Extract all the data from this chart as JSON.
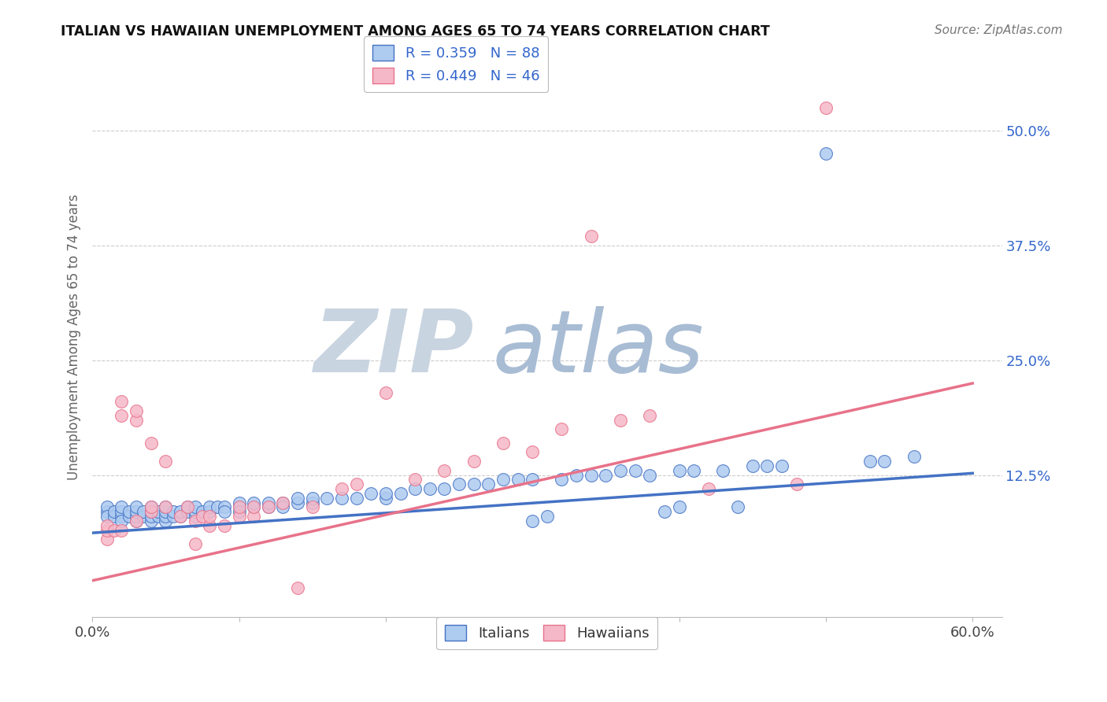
{
  "title": "ITALIAN VS HAWAIIAN UNEMPLOYMENT AMONG AGES 65 TO 74 YEARS CORRELATION CHART",
  "source": "Source: ZipAtlas.com",
  "ylabel": "Unemployment Among Ages 65 to 74 years",
  "xlim": [
    0.0,
    0.62
  ],
  "ylim": [
    -0.03,
    0.58
  ],
  "xtick_labels_show": [
    "0.0%",
    "60.0%"
  ],
  "ytick_right": [
    0.125,
    0.25,
    0.375,
    0.5
  ],
  "ytick_right_labels": [
    "12.5%",
    "25.0%",
    "37.5%",
    "50.0%"
  ],
  "italian_color": "#aecbf0",
  "hawaiian_color": "#f5b8c8",
  "italian_line_color": "#4472c4",
  "hawaiian_line_color": "#e8728a",
  "legend_color": "#3366cc",
  "watermark_ZIP_color": "#c8d4e0",
  "watermark_atlas_color": "#a8bcd4",
  "background_color": "#ffffff",
  "italian_points": [
    [
      0.01,
      0.085
    ],
    [
      0.01,
      0.09
    ],
    [
      0.01,
      0.08
    ],
    [
      0.015,
      0.08
    ],
    [
      0.015,
      0.085
    ],
    [
      0.02,
      0.08
    ],
    [
      0.02,
      0.085
    ],
    [
      0.02,
      0.075
    ],
    [
      0.02,
      0.09
    ],
    [
      0.025,
      0.08
    ],
    [
      0.025,
      0.085
    ],
    [
      0.03,
      0.075
    ],
    [
      0.03,
      0.08
    ],
    [
      0.03,
      0.085
    ],
    [
      0.03,
      0.09
    ],
    [
      0.035,
      0.08
    ],
    [
      0.035,
      0.085
    ],
    [
      0.04,
      0.075
    ],
    [
      0.04,
      0.08
    ],
    [
      0.04,
      0.085
    ],
    [
      0.04,
      0.09
    ],
    [
      0.045,
      0.08
    ],
    [
      0.045,
      0.085
    ],
    [
      0.05,
      0.075
    ],
    [
      0.05,
      0.08
    ],
    [
      0.05,
      0.085
    ],
    [
      0.05,
      0.09
    ],
    [
      0.055,
      0.08
    ],
    [
      0.055,
      0.085
    ],
    [
      0.06,
      0.08
    ],
    [
      0.06,
      0.085
    ],
    [
      0.065,
      0.085
    ],
    [
      0.065,
      0.09
    ],
    [
      0.07,
      0.08
    ],
    [
      0.07,
      0.085
    ],
    [
      0.07,
      0.09
    ],
    [
      0.075,
      0.085
    ],
    [
      0.08,
      0.085
    ],
    [
      0.08,
      0.09
    ],
    [
      0.085,
      0.09
    ],
    [
      0.09,
      0.09
    ],
    [
      0.09,
      0.085
    ],
    [
      0.1,
      0.09
    ],
    [
      0.1,
      0.095
    ],
    [
      0.1,
      0.085
    ],
    [
      0.11,
      0.09
    ],
    [
      0.11,
      0.095
    ],
    [
      0.12,
      0.09
    ],
    [
      0.12,
      0.095
    ],
    [
      0.13,
      0.095
    ],
    [
      0.13,
      0.09
    ],
    [
      0.14,
      0.095
    ],
    [
      0.14,
      0.1
    ],
    [
      0.15,
      0.095
    ],
    [
      0.15,
      0.1
    ],
    [
      0.16,
      0.1
    ],
    [
      0.17,
      0.1
    ],
    [
      0.18,
      0.1
    ],
    [
      0.19,
      0.105
    ],
    [
      0.2,
      0.1
    ],
    [
      0.2,
      0.105
    ],
    [
      0.21,
      0.105
    ],
    [
      0.22,
      0.11
    ],
    [
      0.23,
      0.11
    ],
    [
      0.24,
      0.11
    ],
    [
      0.25,
      0.115
    ],
    [
      0.26,
      0.115
    ],
    [
      0.27,
      0.115
    ],
    [
      0.28,
      0.12
    ],
    [
      0.29,
      0.12
    ],
    [
      0.3,
      0.075
    ],
    [
      0.3,
      0.12
    ],
    [
      0.31,
      0.08
    ],
    [
      0.32,
      0.12
    ],
    [
      0.33,
      0.125
    ],
    [
      0.34,
      0.125
    ],
    [
      0.35,
      0.125
    ],
    [
      0.36,
      0.13
    ],
    [
      0.37,
      0.13
    ],
    [
      0.38,
      0.125
    ],
    [
      0.39,
      0.085
    ],
    [
      0.4,
      0.09
    ],
    [
      0.4,
      0.13
    ],
    [
      0.41,
      0.13
    ],
    [
      0.43,
      0.13
    ],
    [
      0.44,
      0.09
    ],
    [
      0.45,
      0.135
    ],
    [
      0.46,
      0.135
    ],
    [
      0.47,
      0.135
    ],
    [
      0.5,
      0.475
    ],
    [
      0.53,
      0.14
    ],
    [
      0.54,
      0.14
    ],
    [
      0.56,
      0.145
    ]
  ],
  "hawaiian_points": [
    [
      0.01,
      0.055
    ],
    [
      0.01,
      0.065
    ],
    [
      0.01,
      0.07
    ],
    [
      0.015,
      0.065
    ],
    [
      0.02,
      0.065
    ],
    [
      0.02,
      0.19
    ],
    [
      0.02,
      0.205
    ],
    [
      0.03,
      0.075
    ],
    [
      0.03,
      0.185
    ],
    [
      0.03,
      0.195
    ],
    [
      0.04,
      0.16
    ],
    [
      0.04,
      0.085
    ],
    [
      0.04,
      0.09
    ],
    [
      0.05,
      0.09
    ],
    [
      0.05,
      0.14
    ],
    [
      0.06,
      0.08
    ],
    [
      0.065,
      0.09
    ],
    [
      0.07,
      0.05
    ],
    [
      0.07,
      0.075
    ],
    [
      0.075,
      0.08
    ],
    [
      0.08,
      0.07
    ],
    [
      0.08,
      0.08
    ],
    [
      0.09,
      0.07
    ],
    [
      0.1,
      0.08
    ],
    [
      0.1,
      0.09
    ],
    [
      0.11,
      0.08
    ],
    [
      0.11,
      0.09
    ],
    [
      0.12,
      0.09
    ],
    [
      0.13,
      0.095
    ],
    [
      0.14,
      0.002
    ],
    [
      0.15,
      0.09
    ],
    [
      0.17,
      0.11
    ],
    [
      0.18,
      0.115
    ],
    [
      0.2,
      0.215
    ],
    [
      0.22,
      0.12
    ],
    [
      0.24,
      0.13
    ],
    [
      0.26,
      0.14
    ],
    [
      0.28,
      0.16
    ],
    [
      0.3,
      0.15
    ],
    [
      0.32,
      0.175
    ],
    [
      0.34,
      0.385
    ],
    [
      0.36,
      0.185
    ],
    [
      0.38,
      0.19
    ],
    [
      0.42,
      0.11
    ],
    [
      0.48,
      0.115
    ],
    [
      0.5,
      0.525
    ]
  ],
  "italian_reg": [
    0.0,
    0.062,
    0.6,
    0.127
  ],
  "hawaiian_reg": [
    0.0,
    0.01,
    0.6,
    0.225
  ]
}
